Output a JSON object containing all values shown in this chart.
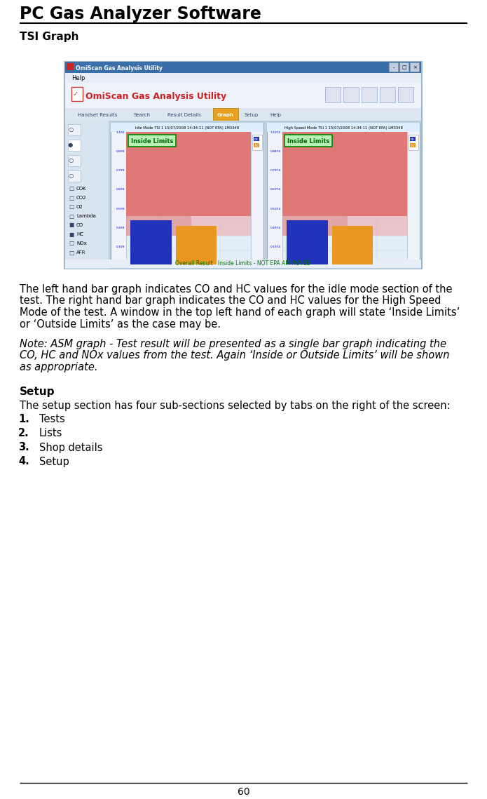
{
  "title": "PC Gas Analyzer Software",
  "section1_title": "TSI Graph",
  "body_text1_lines": [
    "The left hand bar graph indicates CO and HC values for the idle mode section of the",
    "test. The right hand bar graph indicates the CO and HC values for the High Speed",
    "Mode of the test. A window in the top left hand of each graph will state ‘Inside Limits’",
    "or ‘Outside Limits’ as the case may be."
  ],
  "note_text_lines": [
    "Note: ASM graph - Test result will be presented as a single bar graph indicating the",
    "CO, HC and NOx values from the test. Again ‘Inside or Outside Limits’ will be shown",
    "as appropriate."
  ],
  "section2_title": "Setup",
  "setup_intro": "The setup section has four sub-sections selected by tabs on the right of the screen:",
  "setup_items": [
    "Tests",
    "Lists",
    "Shop details",
    "Setup"
  ],
  "page_number": "60",
  "title_fontsize": 17,
  "section_fontsize": 11,
  "body_fontsize": 10.5,
  "note_fontsize": 10.5,
  "title_color": "#000000",
  "body_color": "#000000",
  "bg_color": "#ffffff"
}
